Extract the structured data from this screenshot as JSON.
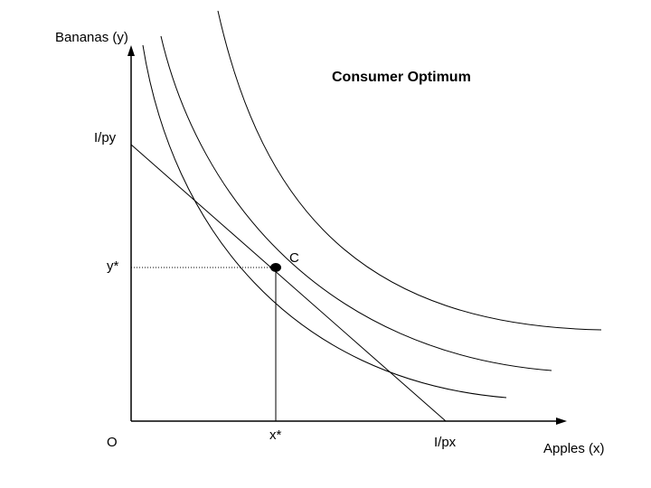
{
  "title": "Consumer Optimum",
  "axes": {
    "y_label": "Bananas (y)",
    "x_label": "Apples (x)",
    "origin_label": "O"
  },
  "budget_line": {
    "y_intercept_label": "I/py",
    "x_intercept_label": "I/px"
  },
  "optimum": {
    "point_label": "C",
    "x_label": "x*",
    "y_label": "y*"
  },
  "indifference_curves": 3,
  "colors": {
    "line": "#000000",
    "background": "#ffffff"
  }
}
